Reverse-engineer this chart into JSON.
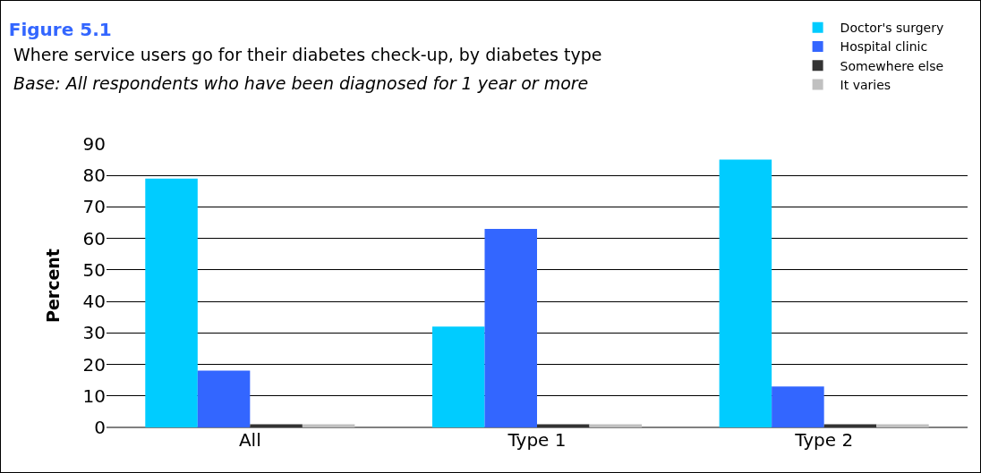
{
  "chart_data": {
    "type": "bar",
    "title": "Figure 5.1",
    "subtitle": "Where service users go for their diabetes check-up, by diabetes type",
    "annotations": [
      "Base: All respondents who have been diagnosed for 1 year or more"
    ],
    "ylabel": "Percent",
    "categories": [
      "All",
      "Type 1",
      "Type 2"
    ],
    "series": [
      {
        "name": "Doctor's surgery",
        "color": "#00ccff",
        "values": [
          79,
          32,
          85
        ]
      },
      {
        "name": "Hospital clinic",
        "color": "#3366ff",
        "values": [
          18,
          63,
          13
        ]
      },
      {
        "name": "Somewhere else",
        "color": "#333333",
        "values": [
          1,
          1,
          1
        ]
      },
      {
        "name": "It varies",
        "color": "#c0c0c0",
        "values": [
          1,
          1,
          1
        ]
      }
    ],
    "ylim": [
      0,
      90
    ],
    "yticks": [
      0,
      10,
      20,
      30,
      40,
      50,
      60,
      70,
      80,
      90
    ],
    "grid": "y",
    "legend": "top right"
  }
}
